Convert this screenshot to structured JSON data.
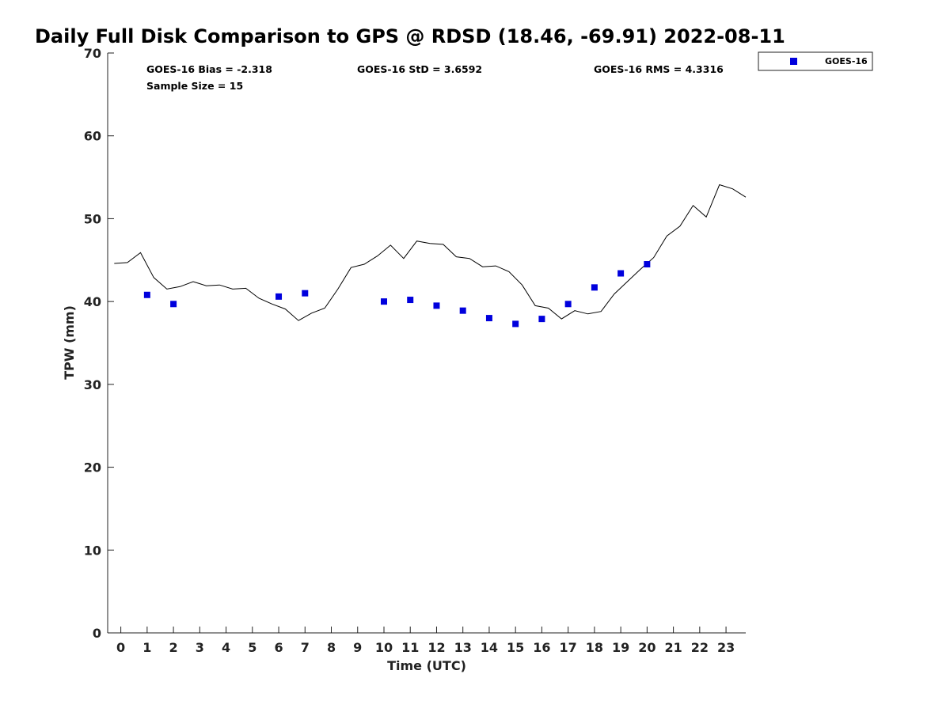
{
  "chart_data": {
    "type": "line",
    "title": "Daily Full Disk Comparison to GPS @ RDSD (18.46, -69.91) 2022-08-11",
    "xlabel": "Time (UTC)",
    "ylabel": "TPW (mm)",
    "xlim": [
      -0.5,
      23.75
    ],
    "ylim": [
      0,
      70
    ],
    "x_ticks": [
      "0",
      "1",
      "2",
      "3",
      "4",
      "5",
      "6",
      "7",
      "8",
      "9",
      "10",
      "11",
      "12",
      "13",
      "14",
      "15",
      "16",
      "17",
      "18",
      "19",
      "20",
      "21",
      "22",
      "23"
    ],
    "y_ticks": [
      "0",
      "10",
      "20",
      "30",
      "40",
      "50",
      "60",
      "70"
    ],
    "grid": false,
    "legend_position": "outside-top-right",
    "stats": {
      "bias": "GOES-16 Bias = -2.318",
      "std": "GOES-16 StD = 3.6592",
      "rms": "GOES-16 RMS = 4.3316",
      "sample": "Sample Size = 15"
    },
    "series": [
      {
        "kind": "line",
        "color": "#000000",
        "x": [
          -0.25,
          0.25,
          0.75,
          1.25,
          1.75,
          2.25,
          2.75,
          3.25,
          3.75,
          4.25,
          4.75,
          5.25,
          5.75,
          6.25,
          6.75,
          7.25,
          7.75,
          8.25,
          8.75,
          9.25,
          9.75,
          10.25,
          10.75,
          11.25,
          11.75,
          12.25,
          12.75,
          13.25,
          13.75,
          14.25,
          14.75,
          15.25,
          15.75,
          16.25,
          16.75,
          17.25,
          17.75,
          18.25,
          18.75,
          19.25,
          19.75,
          20.25,
          20.75,
          21.25,
          21.75,
          22.25,
          22.75,
          23.25,
          23.75
        ],
        "y": [
          44.6,
          44.7,
          45.9,
          42.9,
          41.5,
          41.8,
          42.4,
          41.9,
          42.0,
          41.5,
          41.6,
          40.4,
          39.7,
          39.1,
          37.7,
          38.6,
          39.2,
          41.5,
          44.1,
          44.5,
          45.5,
          46.8,
          45.2,
          47.3,
          47.0,
          46.9,
          45.4,
          45.2,
          44.2,
          44.3,
          43.6,
          42.0,
          39.5,
          39.2,
          37.9,
          38.9,
          38.5,
          38.8,
          40.9,
          42.4,
          43.9,
          45.3,
          47.9,
          49.1,
          51.6,
          50.2,
          54.1,
          53.6,
          52.6
        ]
      },
      {
        "name": "GOES-16",
        "kind": "scatter",
        "marker": "square",
        "color": "#0000dd",
        "x": [
          1,
          2,
          6,
          7,
          10,
          11,
          12,
          13,
          14,
          15,
          16,
          17,
          18,
          19,
          20
        ],
        "y": [
          40.8,
          39.7,
          40.6,
          41.0,
          40.0,
          40.2,
          39.5,
          38.9,
          38.0,
          37.3,
          37.9,
          39.7,
          41.7,
          43.4,
          44.5
        ]
      }
    ]
  }
}
